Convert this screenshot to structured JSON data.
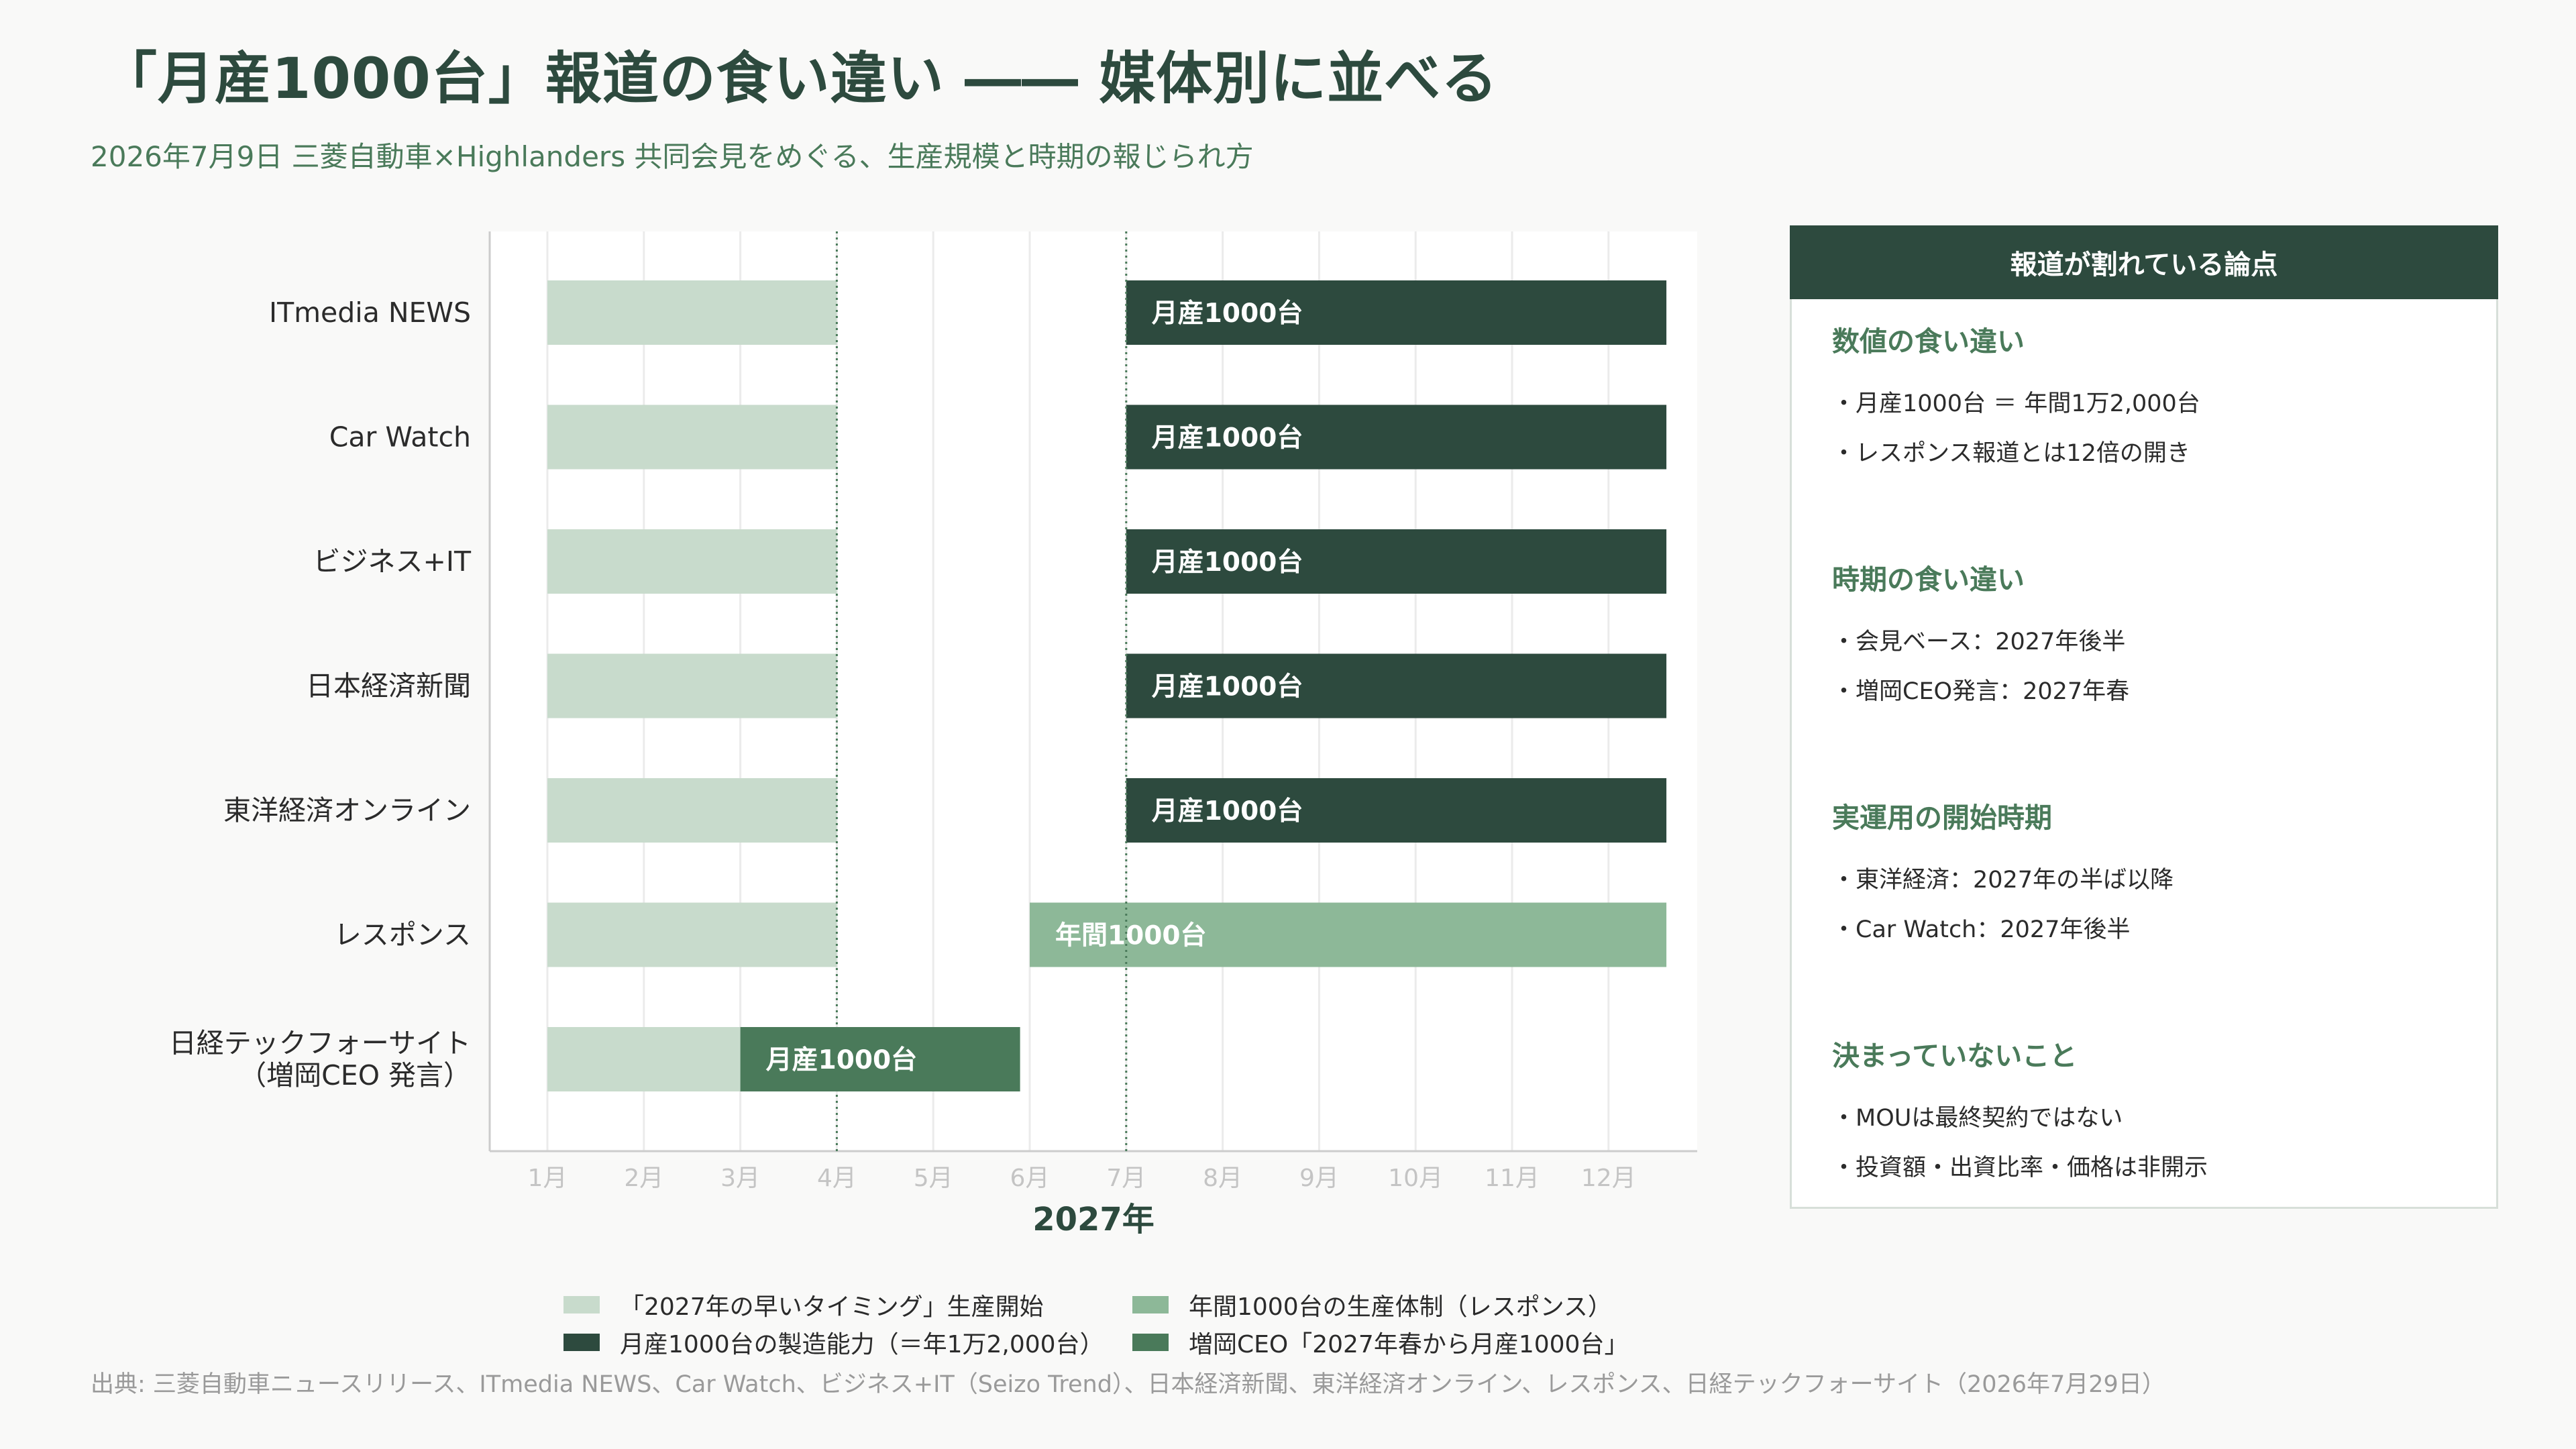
{
  "title": "「月産1000台」報道の食い違い ―― 媒体別に並べる",
  "subtitle": "2026年7月9日 三菱自動車×Highlanders 共同会見をめぐる、生産規模と時期の報じられ方",
  "colors": {
    "early_start": "#c8dbcc",
    "monthly_1000": "#2d4a3e",
    "annual_1000": "#8db898",
    "ceo_statement": "#4a7a5a"
  },
  "chart_data": {
    "type": "bar",
    "orientation": "horizontal-timeline",
    "xlabel": "2027年",
    "x_ticks": [
      "1月",
      "2月",
      "3月",
      "4月",
      "5月",
      "6月",
      "7月",
      "8月",
      "9月",
      "10月",
      "11月",
      "12月"
    ],
    "xlim": [
      0.4,
      13.0
    ],
    "reference_lines": [
      4,
      7
    ],
    "categories": [
      [
        "ITmedia NEWS"
      ],
      [
        "Car Watch"
      ],
      [
        "ビジネス+IT"
      ],
      [
        "日本経済新聞"
      ],
      [
        "東洋経済オンライン"
      ],
      [
        "レスポンス"
      ],
      [
        "日経テックフォーサイト",
        "（増岡CEO 発言）"
      ]
    ],
    "series": [
      {
        "name": "「2027年の早いタイミング」生産開始",
        "color_key": "early_start",
        "bars": [
          {
            "row": 0,
            "start": 1,
            "end": 4
          },
          {
            "row": 1,
            "start": 1,
            "end": 4
          },
          {
            "row": 2,
            "start": 1,
            "end": 4
          },
          {
            "row": 3,
            "start": 1,
            "end": 4
          },
          {
            "row": 4,
            "start": 1,
            "end": 4
          },
          {
            "row": 5,
            "start": 1,
            "end": 4
          },
          {
            "row": 6,
            "start": 1,
            "end": 3
          }
        ]
      },
      {
        "name": "月産1000台の製造能力（＝年1万2,000台）",
        "color_key": "monthly_1000",
        "bars": [
          {
            "row": 0,
            "start": 7,
            "end": 12.6,
            "label": "月産1000台"
          },
          {
            "row": 1,
            "start": 7,
            "end": 12.6,
            "label": "月産1000台"
          },
          {
            "row": 2,
            "start": 7,
            "end": 12.6,
            "label": "月産1000台"
          },
          {
            "row": 3,
            "start": 7,
            "end": 12.6,
            "label": "月産1000台"
          },
          {
            "row": 4,
            "start": 7,
            "end": 12.6,
            "label": "月産1000台"
          }
        ]
      },
      {
        "name": "年間1000台の生産体制（レスポンス）",
        "color_key": "annual_1000",
        "bars": [
          {
            "row": 5,
            "start": 6,
            "end": 12.6,
            "label": "年間1000台"
          }
        ]
      },
      {
        "name": "増岡CEO「2027年春から月産1000台」",
        "color_key": "ceo_statement",
        "bars": [
          {
            "row": 6,
            "start": 3,
            "end": 5.9,
            "label": "月産1000台"
          }
        ]
      }
    ],
    "legend": [
      {
        "label": "「2027年の早いタイミング」生産開始",
        "color_key": "early_start"
      },
      {
        "label": "年間1000台の生産体制（レスポンス）",
        "color_key": "annual_1000"
      },
      {
        "label": "月産1000台の製造能力（＝年1万2,000台）",
        "color_key": "monthly_1000"
      },
      {
        "label": "増岡CEO「2027年春から月産1000台」",
        "color_key": "ceo_statement"
      }
    ],
    "legend_position": "bottom"
  },
  "panel": {
    "header": "報道が割れている論点",
    "sections": [
      {
        "title": "数値の食い違い",
        "items": [
          "・月産1000台 ＝ 年間1万2,000台",
          "・レスポンス報道とは12倍の開き"
        ]
      },
      {
        "title": "時期の食い違い",
        "items": [
          "・会見ベース：2027年後半",
          "・増岡CEO発言：2027年春"
        ]
      },
      {
        "title": "実運用の開始時期",
        "items": [
          "・東洋経済：2027年の半ば以降",
          "・Car Watch：2027年後半"
        ]
      },
      {
        "title": "決まっていないこと",
        "items": [
          "・MOUは最終契約ではない",
          "・投資額・出資比率・価格は非開示"
        ]
      }
    ]
  },
  "source": "出典: 三菱自動車ニュースリリース、ITmedia NEWS、Car Watch、ビジネス+IT（Seizo Trend）、日本経済新聞、東洋経済オンライン、レスポンス、日経テックフォーサイト（2026年7月29日）"
}
